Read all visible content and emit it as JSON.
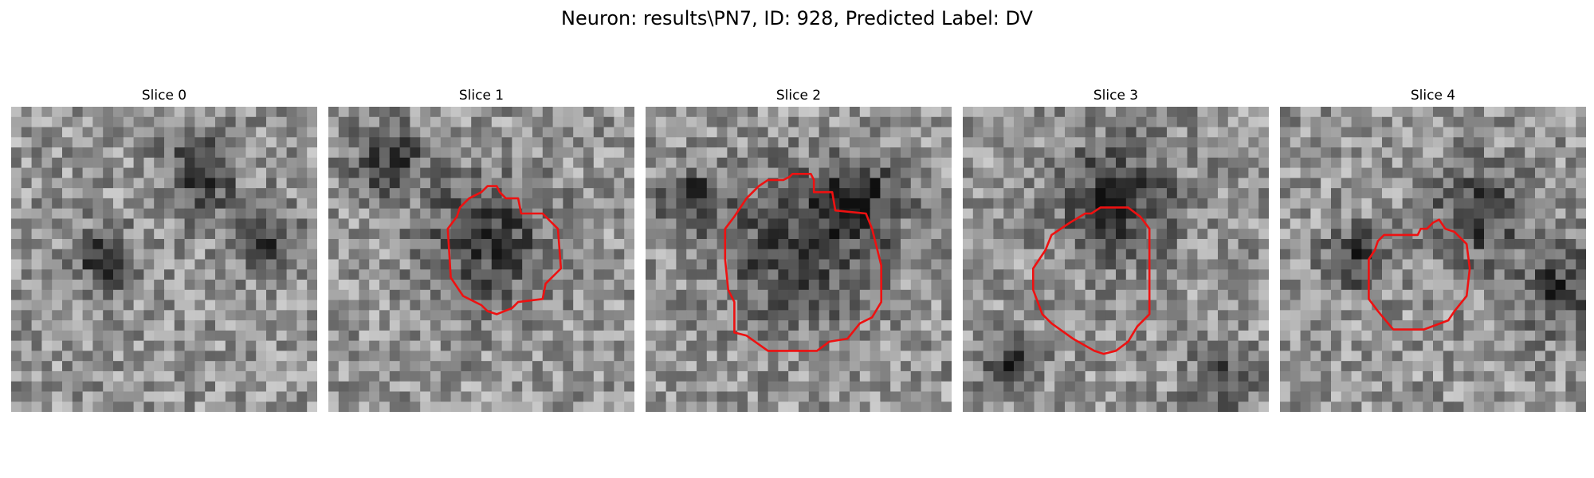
{
  "figure": {
    "title": "Neuron: results\\PN7, ID: 928, Predicted Label: DV",
    "contour_color": "#ee1111"
  },
  "panels": [
    {
      "title": "Slice 0",
      "has_contour": false,
      "dark_blobs": [
        [
          0.62,
          0.22,
          0.12
        ],
        [
          0.82,
          0.42,
          0.1
        ],
        [
          0.3,
          0.5,
          0.1
        ]
      ]
    },
    {
      "title": "Slice 1",
      "has_contour": true,
      "dark_blobs": [
        [
          0.52,
          0.44,
          0.2
        ],
        [
          0.2,
          0.18,
          0.12
        ]
      ],
      "contour": [
        [
          0.52,
          0.26
        ],
        [
          0.55,
          0.26
        ],
        [
          0.56,
          0.28
        ],
        [
          0.58,
          0.3
        ],
        [
          0.62,
          0.3
        ],
        [
          0.63,
          0.35
        ],
        [
          0.7,
          0.35
        ],
        [
          0.75,
          0.4
        ],
        [
          0.76,
          0.53
        ],
        [
          0.71,
          0.58
        ],
        [
          0.7,
          0.63
        ],
        [
          0.62,
          0.64
        ],
        [
          0.6,
          0.66
        ],
        [
          0.55,
          0.68
        ],
        [
          0.52,
          0.67
        ],
        [
          0.5,
          0.65
        ],
        [
          0.44,
          0.62
        ],
        [
          0.4,
          0.56
        ],
        [
          0.39,
          0.4
        ],
        [
          0.42,
          0.36
        ],
        [
          0.43,
          0.33
        ],
        [
          0.46,
          0.3
        ],
        [
          0.5,
          0.28
        ]
      ]
    },
    {
      "title": "Slice 2",
      "has_contour": true,
      "dark_blobs": [
        [
          0.5,
          0.47,
          0.24
        ],
        [
          0.72,
          0.3,
          0.14
        ],
        [
          0.15,
          0.3,
          0.1
        ]
      ],
      "contour": [
        [
          0.47,
          0.23
        ],
        [
          0.48,
          0.22
        ],
        [
          0.54,
          0.22
        ],
        [
          0.55,
          0.24
        ],
        [
          0.55,
          0.28
        ],
        [
          0.61,
          0.28
        ],
        [
          0.62,
          0.34
        ],
        [
          0.72,
          0.35
        ],
        [
          0.74,
          0.4
        ],
        [
          0.77,
          0.52
        ],
        [
          0.77,
          0.64
        ],
        [
          0.74,
          0.69
        ],
        [
          0.7,
          0.71
        ],
        [
          0.66,
          0.76
        ],
        [
          0.6,
          0.77
        ],
        [
          0.56,
          0.8
        ],
        [
          0.4,
          0.8
        ],
        [
          0.33,
          0.75
        ],
        [
          0.29,
          0.74
        ],
        [
          0.29,
          0.64
        ],
        [
          0.27,
          0.6
        ],
        [
          0.26,
          0.5
        ],
        [
          0.26,
          0.4
        ],
        [
          0.29,
          0.36
        ],
        [
          0.33,
          0.3
        ],
        [
          0.37,
          0.26
        ],
        [
          0.4,
          0.24
        ],
        [
          0.45,
          0.24
        ]
      ]
    },
    {
      "title": "Slice 3",
      "has_contour": true,
      "dark_blobs": [
        [
          0.5,
          0.3,
          0.2
        ],
        [
          0.15,
          0.85,
          0.1
        ],
        [
          0.85,
          0.9,
          0.1
        ]
      ],
      "contour": [
        [
          0.4,
          0.35
        ],
        [
          0.42,
          0.35
        ],
        [
          0.45,
          0.33
        ],
        [
          0.54,
          0.33
        ],
        [
          0.58,
          0.36
        ],
        [
          0.61,
          0.4
        ],
        [
          0.61,
          0.68
        ],
        [
          0.57,
          0.72
        ],
        [
          0.54,
          0.77
        ],
        [
          0.5,
          0.8
        ],
        [
          0.46,
          0.81
        ],
        [
          0.43,
          0.8
        ],
        [
          0.36,
          0.76
        ],
        [
          0.29,
          0.71
        ],
        [
          0.26,
          0.68
        ],
        [
          0.23,
          0.6
        ],
        [
          0.23,
          0.53
        ],
        [
          0.27,
          0.47
        ],
        [
          0.29,
          0.42
        ],
        [
          0.35,
          0.38
        ]
      ]
    },
    {
      "title": "Slice 4",
      "has_contour": true,
      "dark_blobs": [
        [
          0.65,
          0.35,
          0.15
        ],
        [
          0.92,
          0.6,
          0.14
        ],
        [
          0.25,
          0.5,
          0.1
        ]
      ],
      "contour": [
        [
          0.45,
          0.42
        ],
        [
          0.46,
          0.4
        ],
        [
          0.48,
          0.4
        ],
        [
          0.5,
          0.38
        ],
        [
          0.52,
          0.37
        ],
        [
          0.54,
          0.4
        ],
        [
          0.57,
          0.41
        ],
        [
          0.61,
          0.45
        ],
        [
          0.62,
          0.53
        ],
        [
          0.61,
          0.62
        ],
        [
          0.57,
          0.67
        ],
        [
          0.55,
          0.7
        ],
        [
          0.47,
          0.73
        ],
        [
          0.37,
          0.73
        ],
        [
          0.32,
          0.67
        ],
        [
          0.29,
          0.63
        ],
        [
          0.29,
          0.5
        ],
        [
          0.31,
          0.47
        ],
        [
          0.32,
          0.44
        ],
        [
          0.34,
          0.42
        ]
      ]
    }
  ]
}
